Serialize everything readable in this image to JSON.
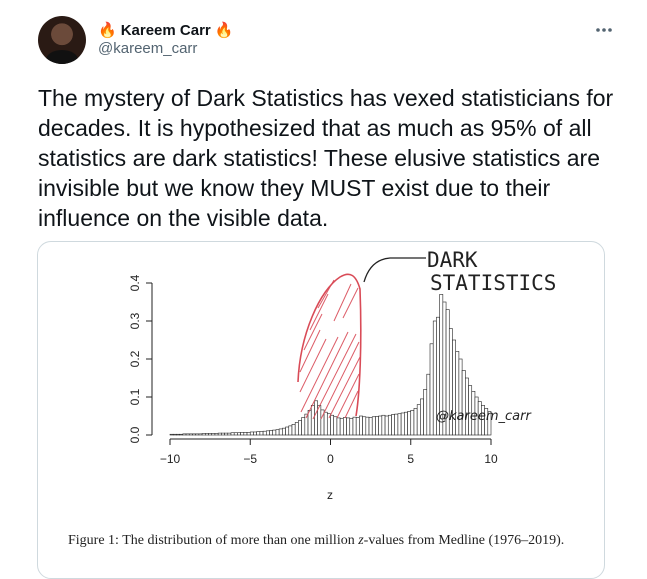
{
  "author": {
    "name": "Kareem Carr",
    "handle": "@kareem_carr",
    "name_emoji_left": "🔥",
    "name_emoji_right": "🔥"
  },
  "more_icon": "more-horizontal-icon",
  "tweet_text": "The mystery of Dark Statistics has vexed statisticians for decades. It is hypothesized that as much as 95% of all statistics are dark statistics! These elusive statistics are invisible but we know they MUST exist due to their influence on the visible data.",
  "media": {
    "annotation": {
      "line1": "DARK",
      "line2": "STATISTICS",
      "watermark": "@kareem_carr"
    },
    "caption_prefix": "Figure 1:  The distribution of more than one million ",
    "caption_var": "z",
    "caption_suffix": "-values from Medline (1976–2019).",
    "annotation_color": "#d94b57"
  },
  "chart_data": {
    "type": "bar",
    "xlabel": "z",
    "ylabel": "",
    "xlim": [
      -10,
      10
    ],
    "ylim": [
      0,
      0.4
    ],
    "x_ticks": [
      -10,
      -5,
      0,
      5,
      10
    ],
    "y_ticks": [
      "0.0",
      "0.1",
      "0.2",
      "0.3",
      "0.4"
    ],
    "bin_width": 0.2,
    "bin_start": -10,
    "values": [
      0.002,
      0.002,
      0.002,
      0.002,
      0.003,
      0.003,
      0.003,
      0.003,
      0.003,
      0.003,
      0.004,
      0.004,
      0.004,
      0.004,
      0.004,
      0.005,
      0.005,
      0.005,
      0.005,
      0.006,
      0.006,
      0.006,
      0.007,
      0.007,
      0.007,
      0.008,
      0.008,
      0.009,
      0.009,
      0.01,
      0.011,
      0.012,
      0.013,
      0.014,
      0.016,
      0.018,
      0.021,
      0.024,
      0.028,
      0.033,
      0.038,
      0.046,
      0.055,
      0.065,
      0.078,
      0.09,
      0.078,
      0.066,
      0.06,
      0.056,
      0.052,
      0.048,
      0.045,
      0.044,
      0.046,
      0.045,
      0.044,
      0.047,
      0.046,
      0.05,
      0.048,
      0.047,
      0.046,
      0.048,
      0.049,
      0.05,
      0.052,
      0.05,
      0.052,
      0.054,
      0.055,
      0.056,
      0.058,
      0.06,
      0.062,
      0.065,
      0.07,
      0.08,
      0.095,
      0.12,
      0.16,
      0.24,
      0.3,
      0.31,
      0.37,
      0.35,
      0.33,
      0.28,
      0.25,
      0.22,
      0.2,
      0.17,
      0.15,
      0.13,
      0.115,
      0.1,
      0.088,
      0.078,
      0.07,
      0.062,
      0.055,
      0.05,
      0.045,
      0.041,
      0.037,
      0.034,
      0.031,
      0.028,
      0.026,
      0.024,
      0.022,
      0.02,
      0.019,
      0.018,
      0.017,
      0.016,
      0.015,
      0.014,
      0.013,
      0.012,
      0.012,
      0.011,
      0.011,
      0.01,
      0.01,
      0.009,
      0.009,
      0.008,
      0.008,
      0.008,
      0.007,
      0.007,
      0.007,
      0.006,
      0.006,
      0.006,
      0.006,
      0.005,
      0.005,
      0.005,
      0.005,
      0.005,
      0.004,
      0.004,
      0.004,
      0.004,
      0.004,
      0.004,
      0.003,
      0.003,
      0.003,
      0.003,
      0.003,
      0.003,
      0.003,
      0.003,
      0.003,
      0.003,
      0.003,
      0.003,
      0.002,
      0.002,
      0.002,
      0.002,
      0.002,
      0.002,
      0.002,
      0.002,
      0.002,
      0.002,
      0.002,
      0.002,
      0.002,
      0.002,
      0.002,
      0.002,
      0.002,
      0.002,
      0.002,
      0.002,
      0.002,
      0.002,
      0.002,
      0.002,
      0.002,
      0.002,
      0.002,
      0.002,
      0.002,
      0.002,
      0.002,
      0.002,
      0.002,
      0.002,
      0.002,
      0.002,
      0.002,
      0.002,
      0.002,
      0.002,
      0.002,
      0.002,
      0.002,
      0.002,
      0.002,
      0.002,
      0.002,
      0.002,
      0.002,
      0.002
    ]
  }
}
